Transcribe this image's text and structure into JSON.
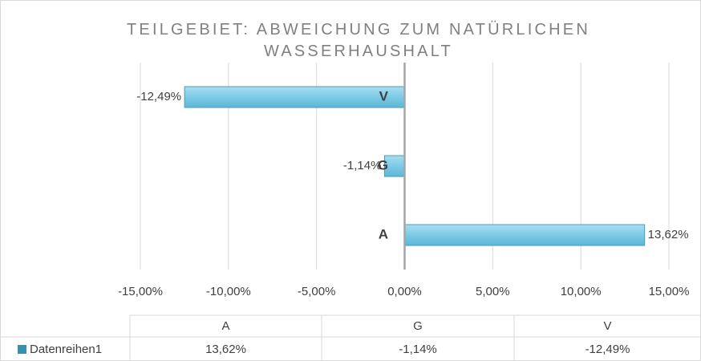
{
  "chart_data": {
    "type": "bar",
    "orientation": "horizontal",
    "title": "TEILGEBIET: ABWEICHUNG ZUM NATÜRLICHEN WASSERHAUSHALT",
    "categories": [
      "A",
      "G",
      "V"
    ],
    "series": [
      {
        "name": "Datenreihen1",
        "color": "#7ccbe6",
        "values": [
          13.62,
          -1.14,
          -12.49
        ],
        "value_labels": [
          "13,62%",
          "-1,14%",
          "-12,49%"
        ]
      }
    ],
    "xlim": [
      -15,
      15
    ],
    "xticks": [
      {
        "value": -15,
        "label": "-15,00%"
      },
      {
        "value": -10,
        "label": "-10,00%"
      },
      {
        "value": -5,
        "label": "-5,00%"
      },
      {
        "value": 0,
        "label": "0,00%"
      },
      {
        "value": 5,
        "label": "5,00%"
      },
      {
        "value": 10,
        "label": "10,00%"
      },
      {
        "value": 15,
        "label": "15,00%"
      }
    ],
    "grid": true,
    "data_table": true
  }
}
